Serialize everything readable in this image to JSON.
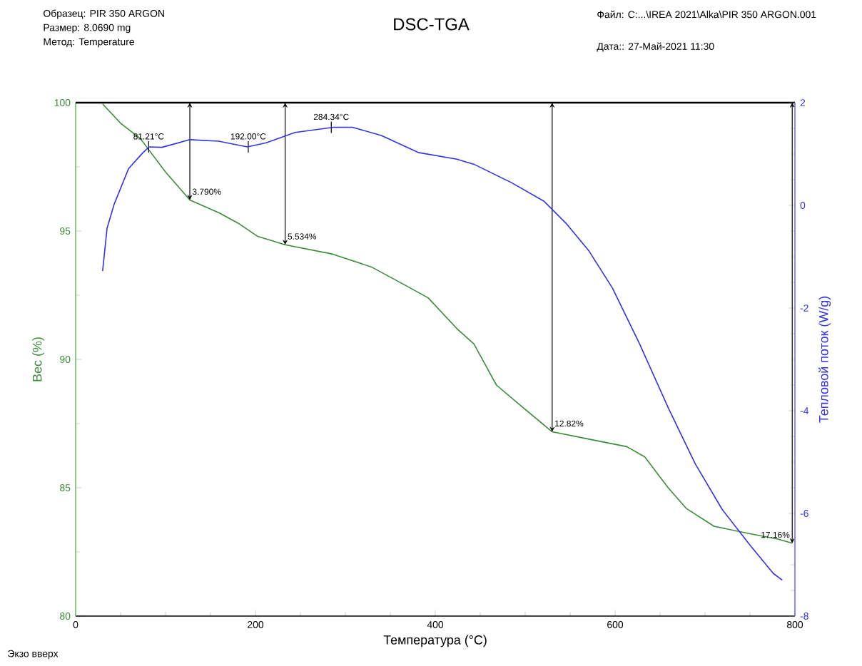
{
  "chart_data": {
    "type": "line",
    "title": "DSC-TGA",
    "xlabel": "Температура (°C)",
    "ylabel": "Вес (%)",
    "y2label": "Тепловой поток (W/g)",
    "xlim": [
      0,
      800
    ],
    "xticks": [
      0,
      200,
      400,
      600,
      800
    ],
    "ylim": [
      80,
      100
    ],
    "yticks": [
      80,
      85,
      90,
      95,
      100
    ],
    "y2lim": [
      -8,
      2
    ],
    "y2ticks": [
      -8,
      -6,
      -4,
      -2,
      0,
      2
    ],
    "series": [
      {
        "color": "#3c8c3c",
        "x": [
          30,
          50,
          72,
          100,
          127,
          160,
          181,
          202,
          233,
          286,
          329,
          366,
          392,
          424,
          443,
          468,
          495,
          530,
          570,
          613,
          633,
          659,
          679,
          710,
          751,
          781,
          797
        ],
        "values": [
          99.95,
          99.2,
          98.6,
          97.3,
          96.21,
          95.7,
          95.3,
          94.8,
          94.466,
          94.1,
          93.6,
          92.9,
          92.4,
          91.2,
          90.6,
          89.0,
          88.2,
          87.18,
          86.9,
          86.6,
          86.2,
          85.0,
          84.2,
          83.5,
          83.2,
          83.0,
          82.84
        ]
      },
      {
        "color": "#3232e6",
        "axis": "y2",
        "x": [
          30,
          35,
          43,
          59,
          75,
          82,
          96,
          127,
          159,
          191,
          212,
          244,
          287,
          308,
          340,
          381,
          424,
          443,
          484,
          521,
          546,
          571,
          597,
          627,
          659,
          689,
          719,
          751,
          776,
          786
        ],
        "values": [
          -1.28,
          -0.44,
          0.03,
          0.72,
          1.03,
          1.14,
          1.13,
          1.28,
          1.25,
          1.14,
          1.22,
          1.42,
          1.52,
          1.52,
          1.36,
          1.03,
          0.9,
          0.8,
          0.45,
          0.08,
          -0.36,
          -0.89,
          -1.61,
          -2.69,
          -3.94,
          -5.03,
          -5.92,
          -6.64,
          -7.17,
          -7.3
        ]
      }
    ],
    "annotations": [
      "Образец: PIR 350 ARGON",
      "Размер:  8.0690 mg",
      "Метод: Temperature",
      "Файл: C:...\\IREA 2021\\Alka\\PIR 350 ARGON.001",
      "Дата:: 27-Май-2021 11:30",
      "Экзо вверх",
      {
        "text": "81.21°C",
        "x": 81.21,
        "y": 98.28
      },
      {
        "text": "192.00°C",
        "x": 192.0,
        "y": 98.28
      },
      {
        "text": "284.34°C",
        "x": 284.34,
        "y": 99.04
      },
      {
        "text": "3.790%",
        "x": 127,
        "y": 96.21
      },
      {
        "text": "5.534%",
        "x": 233,
        "y": 94.466
      },
      {
        "text": "12.82%",
        "x": 530,
        "y": 87.18
      },
      {
        "text": "17.16%",
        "x": 797,
        "y": 82.84
      }
    ]
  }
}
